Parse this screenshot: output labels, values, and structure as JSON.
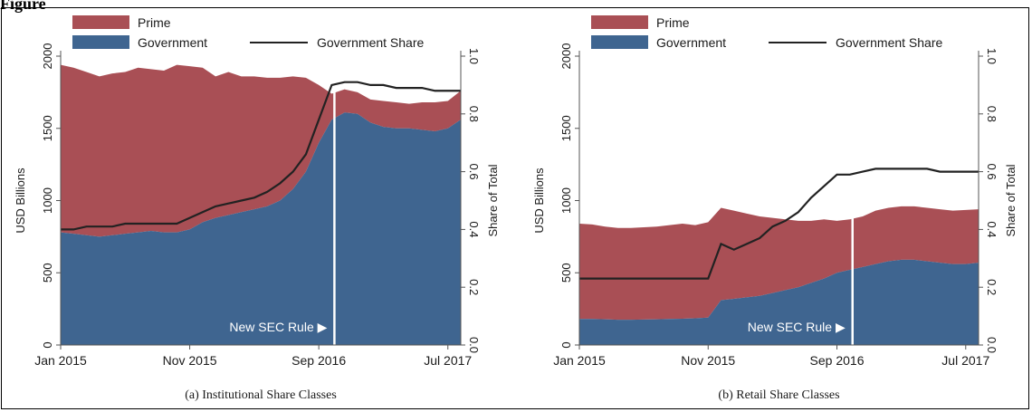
{
  "figure_label": "Figure",
  "colors": {
    "prime": "#a94f55",
    "government": "#3f6590",
    "share_line": "#222222",
    "rule_line": "#ffffff",
    "text": "#1a1a1a"
  },
  "chart_data": [
    {
      "type": "area",
      "caption": "(a) Institutional Share Classes",
      "ylabel": "USD Billions",
      "y2label": "Share of Total",
      "ylim": [
        0,
        2000
      ],
      "y2lim": [
        0,
        1
      ],
      "yticks": [
        "0",
        "500",
        "1000",
        "1500",
        "2000"
      ],
      "y2ticks": [
        "0.0",
        "0.2",
        "0.4",
        "0.6",
        "0.8",
        "1.0"
      ],
      "xticks": [
        "Jan 2015",
        "Nov 2015",
        "Sep 2016",
        "Jul 2017"
      ],
      "legend": {
        "placement": "top",
        "items": [
          "Prime",
          "Government",
          "Government Share"
        ]
      },
      "annotation": "New SEC Rule ▶",
      "rule_month": 21,
      "months": 32,
      "series": [
        {
          "name": "Government",
          "values": [
            780,
            770,
            760,
            750,
            760,
            770,
            780,
            790,
            780,
            780,
            800,
            850,
            880,
            900,
            920,
            940,
            960,
            1000,
            1080,
            1200,
            1400,
            1560,
            1610,
            1600,
            1540,
            1510,
            1500,
            1500,
            1490,
            1480,
            1500,
            1560
          ]
        },
        {
          "name": "Prime",
          "values": [
            1940,
            1920,
            1890,
            1860,
            1880,
            1890,
            1920,
            1910,
            1900,
            1940,
            1930,
            1920,
            1860,
            1890,
            1860,
            1860,
            1850,
            1850,
            1860,
            1850,
            1800,
            1740,
            1770,
            1750,
            1700,
            1690,
            1680,
            1670,
            1680,
            1680,
            1690,
            1760
          ]
        },
        {
          "name": "Government Share",
          "values": [
            0.4,
            0.4,
            0.41,
            0.41,
            0.41,
            0.42,
            0.42,
            0.42,
            0.42,
            0.42,
            0.44,
            0.46,
            0.48,
            0.49,
            0.5,
            0.51,
            0.53,
            0.56,
            0.6,
            0.66,
            0.78,
            0.9,
            0.91,
            0.91,
            0.9,
            0.9,
            0.89,
            0.89,
            0.89,
            0.88,
            0.88,
            0.88
          ]
        }
      ]
    },
    {
      "type": "area",
      "caption": "(b) Retail Share Classes",
      "ylabel": "USD Billions",
      "y2label": "Share of Total",
      "ylim": [
        0,
        2000
      ],
      "y2lim": [
        0,
        1
      ],
      "yticks": [
        "0",
        "500",
        "1000",
        "1500",
        "2000"
      ],
      "y2ticks": [
        "0.0",
        "0.2",
        "0.4",
        "0.6",
        "0.8",
        "1.0"
      ],
      "xticks": [
        "Jan 2015",
        "Nov 2015",
        "Sep 2016",
        "Jul 2017"
      ],
      "legend": {
        "placement": "top",
        "items": [
          "Prime",
          "Government",
          "Government Share"
        ]
      },
      "annotation": "New SEC Rule ▶",
      "rule_month": 21,
      "months": 32,
      "series": [
        {
          "name": "Government",
          "values": [
            180,
            180,
            178,
            175,
            175,
            176,
            178,
            180,
            182,
            185,
            190,
            310,
            320,
            330,
            340,
            360,
            380,
            400,
            430,
            460,
            500,
            520,
            540,
            560,
            580,
            590,
            590,
            580,
            570,
            560,
            560,
            570
          ]
        },
        {
          "name": "Prime",
          "values": [
            840,
            835,
            820,
            810,
            810,
            815,
            820,
            830,
            840,
            830,
            850,
            950,
            930,
            910,
            890,
            880,
            870,
            860,
            860,
            870,
            860,
            870,
            890,
            930,
            950,
            960,
            960,
            950,
            940,
            930,
            935,
            940
          ]
        },
        {
          "name": "Government Share",
          "values": [
            0.23,
            0.23,
            0.23,
            0.23,
            0.23,
            0.23,
            0.23,
            0.23,
            0.23,
            0.23,
            0.23,
            0.35,
            0.33,
            0.35,
            0.37,
            0.41,
            0.43,
            0.46,
            0.51,
            0.55,
            0.59,
            0.59,
            0.6,
            0.61,
            0.61,
            0.61,
            0.61,
            0.61,
            0.6,
            0.6,
            0.6,
            0.6
          ]
        }
      ]
    }
  ]
}
